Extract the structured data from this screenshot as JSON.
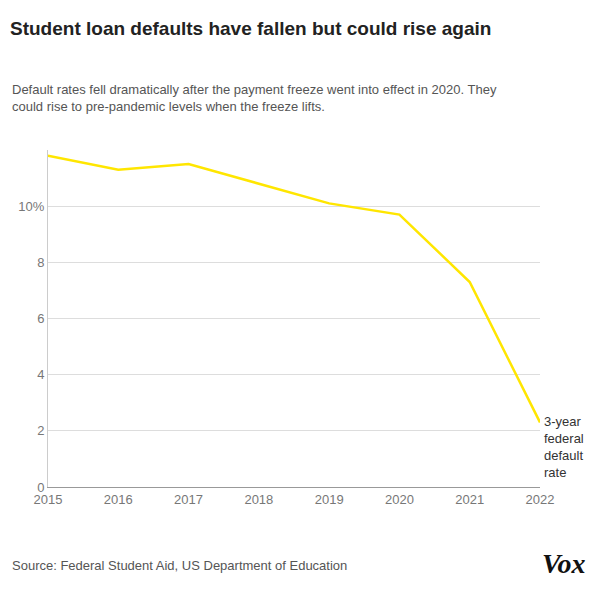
{
  "chart_data": {
    "type": "line",
    "title": "Student loan defaults have fallen but could rise again",
    "subtitle": [
      "Default rates fell dramatically after the payment freeze went into effect in 2020. They",
      "could rise to pre-pandemic levels when the freeze lifts."
    ],
    "source": "Source: Federal Student Aid, US Department of Education",
    "logo": "Vox",
    "x": [
      2015,
      2016,
      2017,
      2018,
      2019,
      2020,
      2021,
      2022
    ],
    "series": [
      {
        "name": "3-year federal default rate",
        "color": "#ffe600",
        "values": [
          11.8,
          11.3,
          11.5,
          10.8,
          10.1,
          9.7,
          7.3,
          2.3
        ]
      }
    ],
    "xlim": [
      2015,
      2022
    ],
    "xticks": [
      2015,
      2016,
      2017,
      2018,
      2019,
      2020,
      2021,
      2022
    ],
    "ylim": [
      0,
      12
    ],
    "yticks": [
      0,
      2,
      4,
      6,
      8,
      {
        "value": 10,
        "label": "10%"
      }
    ],
    "grid": true
  }
}
